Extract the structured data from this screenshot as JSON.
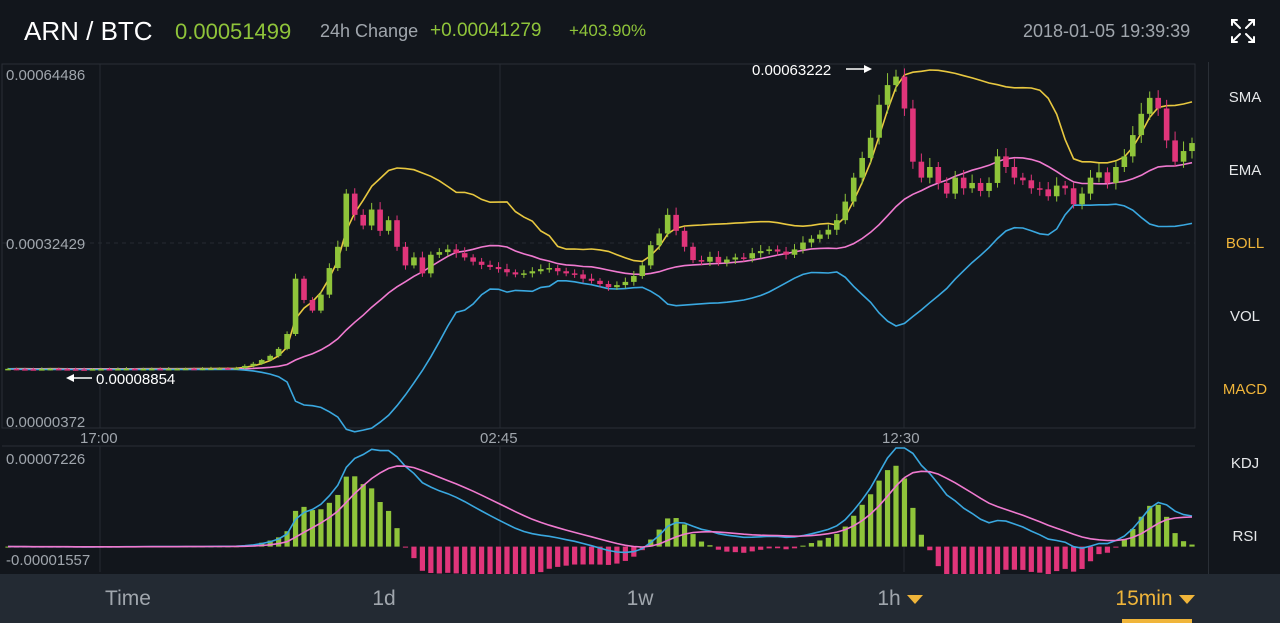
{
  "header": {
    "pair": "ARN / BTC",
    "price": "0.00051499",
    "change_label": "24h Change",
    "change_value": "+0.00041279",
    "change_pct": "+403.90%",
    "datetime": "2018-01-05 19:39:39",
    "expand_icon": "expand-arrows-icon"
  },
  "indicators": [
    {
      "label": "SMA",
      "active": false
    },
    {
      "label": "EMA",
      "active": false
    },
    {
      "label": "BOLL",
      "active": true
    },
    {
      "label": "VOL",
      "active": false
    },
    {
      "label": "MACD",
      "active": true
    },
    {
      "label": "KDJ",
      "active": false
    },
    {
      "label": "RSI",
      "active": false
    }
  ],
  "timeframes": [
    {
      "label": "Time",
      "active": false,
      "dropdown": false
    },
    {
      "label": "1d",
      "active": false,
      "dropdown": false
    },
    {
      "label": "1w",
      "active": false,
      "dropdown": false
    },
    {
      "label": "1h",
      "active": false,
      "dropdown": true
    },
    {
      "label": "15min",
      "active": true,
      "dropdown": true
    }
  ],
  "colors": {
    "up": "#8fc43a",
    "down": "#e0357a",
    "boll_upper": "#e8c840",
    "boll_mid": "#f07ad0",
    "boll_lower": "#3aa8e0",
    "macd_dif": "#3aa8e0",
    "macd_dea": "#f07ad0",
    "accent": "#f0b53a"
  },
  "chart_data": {
    "type": "candlestick",
    "interval": "15min",
    "main": {
      "y_axis_labels": [
        "0.00064486",
        "0.00032429",
        "0.00000372"
      ],
      "ylim": [
        3.72e-06,
        0.00064486
      ],
      "x_tick_labels": [
        "17:00",
        "02:45",
        "12:30"
      ],
      "annotation_high": {
        "label": "0.00063222",
        "value": 0.00063222
      },
      "annotation_low": {
        "label": "0.00008854",
        "value": 8.854e-05
      },
      "close": [
        9.05e-05,
        9e-05,
        8.98e-05,
        8.96e-05,
        9e-05,
        9.05e-05,
        9e-05,
        8.98e-05,
        8.96e-05,
        8.95e-05,
        9e-05,
        9.02e-05,
        9e-05,
        9.03e-05,
        9.05e-05,
        9.02e-05,
        9.04e-05,
        9.05e-05,
        9.03e-05,
        9.04e-05,
        9.05e-05,
        9.07e-05,
        9.06e-05,
        9.08e-05,
        9.1e-05,
        9.15e-05,
        9.12e-05,
        9.18e-05,
        9.6e-05,
        0.0001,
        0.000107,
        0.000115,
        0.000128,
        0.000156,
        0.00026,
        0.00022,
        0.0002,
        0.00023,
        0.00028,
        0.00032,
        0.00042,
        0.00038,
        0.00036,
        0.00039,
        0.00035,
        0.00037,
        0.00032,
        0.000285,
        0.0003,
        0.00027,
        0.000305,
        0.00031,
        0.000315,
        0.000308,
        0.0003,
        0.000292,
        0.000286,
        0.000282,
        0.000278,
        0.000272,
        0.000268,
        0.00027,
        0.000274,
        0.000278,
        0.00028,
        0.000274,
        0.00027,
        0.000268,
        0.00026,
        0.000256,
        0.00025,
        0.000244,
        0.000248,
        0.000254,
        0.000265,
        0.000285,
        0.000323,
        0.000345,
        0.00038,
        0.00035,
        0.00032,
        0.000295,
        0.000292,
        0.000301,
        0.00029,
        0.000296,
        0.0003,
        0.000298,
        0.000308,
        0.000312,
        0.000315,
        0.000311,
        0.000305,
        0.000315,
        0.000328,
        0.000335,
        0.000343,
        0.000352,
        0.00037,
        0.000405,
        0.00045,
        0.000487,
        0.000525,
        0.000587,
        0.000624,
        0.00064,
        0.00058,
        0.00048,
        0.00045,
        0.00047,
        0.00044,
        0.00042,
        0.00045,
        0.00043,
        0.00044,
        0.000425,
        0.00044,
        0.00049,
        0.00047,
        0.00045,
        0.000445,
        0.00043,
        0.000428,
        0.000415,
        0.000435,
        0.00043,
        0.0004,
        0.00042,
        0.00045,
        0.00046,
        0.00044,
        0.00047,
        0.00049,
        0.00053,
        0.00057,
        0.0006,
        0.00058,
        0.00052,
        0.00048,
        0.0005,
        0.000515
      ]
    },
    "macd": {
      "y_axis_labels": [
        "0.00007226",
        "-0.00001557"
      ],
      "ylim": [
        -1.557e-05,
        7.226e-05
      ]
    }
  }
}
